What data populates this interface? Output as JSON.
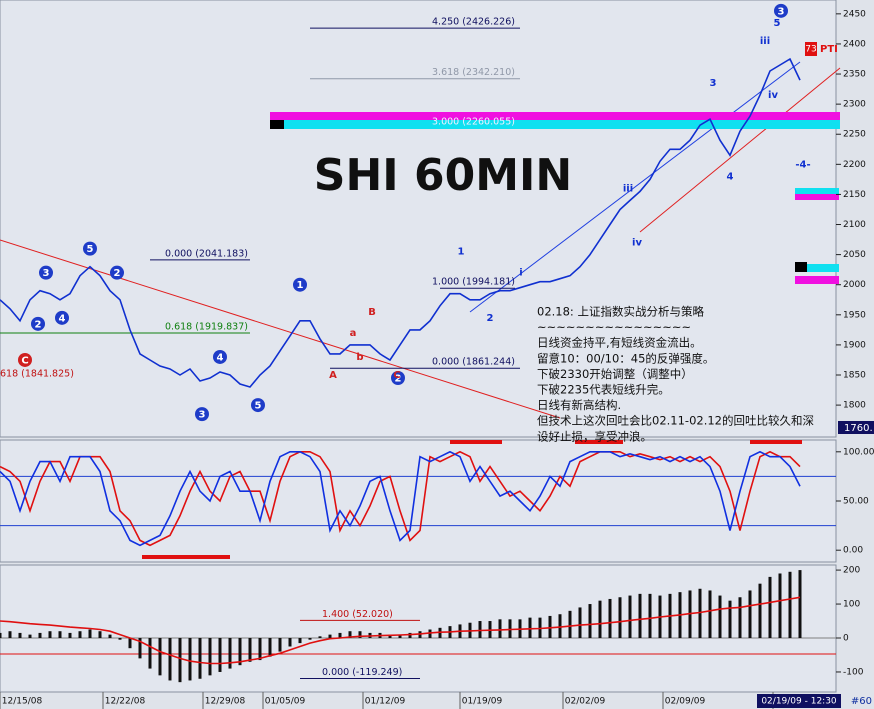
{
  "chart_data": [
    {
      "type": "line",
      "title": "SHI 60MIN",
      "xlim": [
        0,
        83.6
      ],
      "ylim": [
        1747,
        2473
      ],
      "yticks": [
        1800,
        1850,
        1900,
        1950,
        2000,
        2050,
        2100,
        2150,
        2200,
        2250,
        2300,
        2350,
        2400,
        2450
      ],
      "color": "#1030d0",
      "values": [
        1975,
        1960,
        1940,
        1975,
        1990,
        1985,
        1975,
        1985,
        2015,
        2030,
        2015,
        1990,
        1975,
        1925,
        1885,
        1875,
        1865,
        1860,
        1850,
        1860,
        1840,
        1845,
        1855,
        1850,
        1835,
        1830,
        1850,
        1865,
        1890,
        1915,
        1940,
        1940,
        1910,
        1885,
        1885,
        1900,
        1900,
        1900,
        1885,
        1875,
        1900,
        1925,
        1925,
        1940,
        1965,
        1985,
        1985,
        1975,
        1975,
        1985,
        1990,
        1990,
        1995,
        2000,
        2005,
        2005,
        2010,
        2015,
        2030,
        2050,
        2075,
        2100,
        2125,
        2140,
        2155,
        2175,
        2205,
        2225,
        2225,
        2240,
        2265,
        2275,
        2240,
        2215,
        2255,
        2280,
        2315,
        2355,
        2365,
        2375,
        2340
      ],
      "annotations": [
        {
          "text": "4.250 (2426.226)",
          "y": 2426.226,
          "color": "#101060"
        },
        {
          "text": "3.618 (2342.210)",
          "y": 2342.21,
          "color": "#9098a8"
        },
        {
          "text": "3.000 (2260.055)",
          "y": 2260.055,
          "color": "#f0f0ff"
        },
        {
          "text": "0.000 (2041.183)",
          "y": 2041.183,
          "color": "#101060"
        },
        {
          "text": "1.000 (1994.181)",
          "y": 1994.181,
          "color": "#101060"
        },
        {
          "text": "0.618 (1919.837)",
          "y": 1919.837,
          "color": "#108010"
        },
        {
          "text": "0.000 (1861.244)",
          "y": 1861.244,
          "color": "#101060"
        },
        {
          "text": "618 (1841.825)",
          "y": 1841.825,
          "color": "#c01010"
        }
      ],
      "circled_labels": [
        {
          "text": "5",
          "x": 9,
          "y": 2060,
          "color": "#1e3cc8"
        },
        {
          "text": "3",
          "x": 4.6,
          "y": 2020,
          "color": "#1e3cc8"
        },
        {
          "text": "2",
          "x": 11.7,
          "y": 2020,
          "color": "#1e3cc8"
        },
        {
          "text": "4",
          "x": 6.2,
          "y": 1945,
          "color": "#1e3cc8"
        },
        {
          "text": "2",
          "x": 3.8,
          "y": 1935,
          "color": "#1e3cc8"
        },
        {
          "text": "4",
          "x": 22,
          "y": 1880,
          "color": "#1e3cc8"
        },
        {
          "text": "3",
          "x": 20.2,
          "y": 1785,
          "color": "#1e3cc8"
        },
        {
          "text": "5",
          "x": 25.8,
          "y": 1800,
          "color": "#1e3cc8"
        },
        {
          "text": "1",
          "x": 30,
          "y": 2000,
          "color": "#1e3cc8"
        },
        {
          "text": "2",
          "x": 39.8,
          "y": 1845,
          "color": "#1e3cc8"
        },
        {
          "text": "3",
          "x": 78.1,
          "y": 2455,
          "color": "#1e3cc8"
        },
        {
          "text": "C",
          "x": 2.5,
          "y": 1875,
          "color": "#d02020"
        }
      ],
      "wave_labels": [
        {
          "text": "3",
          "x": 71.3,
          "y": 2335,
          "color": "#1030d0"
        },
        {
          "text": "5",
          "x": 77.7,
          "y": 2435,
          "color": "#1030d0"
        },
        {
          "text": "iii",
          "x": 76.5,
          "y": 2405,
          "color": "#1030d0"
        },
        {
          "text": "iv",
          "x": 77.3,
          "y": 2315,
          "color": "#1030d0"
        },
        {
          "text": "4",
          "x": 73,
          "y": 2180,
          "color": "#1030d0"
        },
        {
          "text": "-4-",
          "x": 80.3,
          "y": 2200,
          "color": "#1030d0"
        },
        {
          "text": "A",
          "x": 33.3,
          "y": 1850,
          "color": "#d02020"
        },
        {
          "text": "B",
          "x": 37.2,
          "y": 1955,
          "color": "#d02020"
        },
        {
          "text": "C",
          "x": 39.7,
          "y": 1850,
          "color": "#d02020"
        },
        {
          "text": "a",
          "x": 35.3,
          "y": 1920,
          "color": "#d02020"
        },
        {
          "text": "b",
          "x": 36,
          "y": 1880,
          "color": "#d02020"
        },
        {
          "text": "2",
          "x": 49,
          "y": 1945,
          "color": "#1030d0"
        },
        {
          "text": "1",
          "x": 46.1,
          "y": 2055,
          "color": "#1030d0"
        },
        {
          "text": "i",
          "x": 52.1,
          "y": 2020,
          "color": "#1030d0"
        },
        {
          "text": "iii",
          "x": 62.8,
          "y": 2160,
          "color": "#1030d0"
        },
        {
          "text": "iv",
          "x": 63.7,
          "y": 2070,
          "color": "#1030d0"
        }
      ],
      "notes": [
        "02.18: 上证指数实战分析与策略",
        "~~~~~~~~~~~~~~~~",
        "日线资金持平,有短线资金流出。",
        "留意10：00/10：45的反弹强度。",
        "下破2330开始调整（调整中）",
        "下破2235代表短线升完。",
        "日线有新高结构.",
        "但技术上这次回吐会比02.11-02.12的回吐比较久和深",
        "设好止损，享受冲浪。"
      ],
      "marker": "73",
      "marker_text": "PTI",
      "last_price": "1760."
    },
    {
      "type": "line",
      "xlim": [
        0,
        83.6
      ],
      "ylim": [
        -12,
        112
      ],
      "yticks": [
        {
          "value": 0,
          "label": "0.00"
        },
        {
          "value": 50,
          "label": "50.00"
        },
        {
          "value": 100,
          "label": "100.00"
        }
      ],
      "hlines": [
        {
          "value": 75,
          "color": "#2040d0"
        },
        {
          "value": 25,
          "color": "#2040d0"
        }
      ],
      "lines": [
        {
          "color": "#e01010",
          "values": [
            85,
            80,
            70,
            40,
            70,
            90,
            90,
            70,
            95,
            95,
            95,
            80,
            40,
            30,
            10,
            5,
            10,
            15,
            35,
            60,
            80,
            60,
            50,
            75,
            80,
            60,
            60,
            30,
            70,
            95,
            100,
            100,
            95,
            80,
            20,
            40,
            25,
            45,
            70,
            75,
            40,
            10,
            20,
            95,
            90,
            95,
            100,
            95,
            70,
            85,
            70,
            55,
            60,
            50,
            40,
            55,
            75,
            65,
            90,
            95,
            100,
            100,
            100,
            95,
            98,
            95,
            92,
            95,
            90,
            95,
            90,
            95,
            85,
            60,
            20,
            60,
            95,
            100,
            95,
            95,
            85
          ]
        },
        {
          "color": "#1030e0",
          "values": [
            80,
            70,
            40,
            70,
            90,
            90,
            70,
            95,
            95,
            95,
            80,
            40,
            30,
            10,
            5,
            10,
            15,
            35,
            60,
            80,
            60,
            50,
            75,
            80,
            60,
            60,
            30,
            70,
            95,
            100,
            100,
            95,
            80,
            20,
            40,
            25,
            45,
            70,
            75,
            40,
            10,
            20,
            95,
            90,
            95,
            100,
            95,
            70,
            85,
            70,
            55,
            60,
            50,
            40,
            55,
            75,
            65,
            90,
            95,
            100,
            100,
            100,
            95,
            98,
            95,
            92,
            95,
            90,
            95,
            90,
            95,
            85,
            60,
            20,
            60,
            95,
            100,
            95,
            95,
            85,
            65
          ]
        }
      ]
    },
    {
      "type": "bar",
      "xlim": [
        0,
        83.6
      ],
      "ylim": [
        -159,
        215
      ],
      "yticks": [
        -100,
        0,
        100,
        200
      ],
      "color": "#101010",
      "values": [
        15,
        20,
        15,
        10,
        15,
        20,
        20,
        15,
        20,
        25,
        20,
        10,
        -5,
        -30,
        -60,
        -90,
        -110,
        -125,
        -130,
        -125,
        -120,
        -110,
        -100,
        -90,
        -80,
        -70,
        -65,
        -55,
        -40,
        -25,
        -15,
        -5,
        5,
        10,
        15,
        20,
        20,
        15,
        15,
        10,
        10,
        15,
        20,
        25,
        30,
        35,
        40,
        45,
        50,
        50,
        55,
        55,
        55,
        60,
        60,
        65,
        70,
        80,
        90,
        100,
        110,
        115,
        120,
        125,
        130,
        130,
        125,
        130,
        135,
        140,
        145,
        140,
        125,
        110,
        120,
        140,
        160,
        180,
        190,
        195,
        200
      ],
      "line": {
        "color": "#e01010",
        "values": [
          50,
          48,
          45,
          42,
          40,
          38,
          35,
          32,
          30,
          28,
          25,
          20,
          10,
          0,
          -10,
          -25,
          -40,
          -50,
          -60,
          -68,
          -72,
          -75,
          -75,
          -73,
          -70,
          -65,
          -60,
          -52,
          -45,
          -35,
          -25,
          -15,
          -8,
          -2,
          0,
          3,
          5,
          6,
          7,
          8,
          9,
          10,
          12,
          15,
          17,
          18,
          20,
          21,
          22,
          23,
          24,
          25,
          26,
          27,
          28,
          30,
          32,
          35,
          38,
          40,
          42,
          45,
          48,
          52,
          55,
          58,
          62,
          65,
          68,
          72,
          75,
          80,
          85,
          88,
          90,
          95,
          100,
          105,
          110,
          115,
          120
        ]
      },
      "hlines": [
        {
          "value": 0,
          "color": "#808080"
        },
        {
          "value": -47,
          "color": "#e01010"
        }
      ],
      "annotations": [
        {
          "text": "1.400 (52.020)",
          "y": 52.02,
          "color": "#c01010"
        },
        {
          "text": "0.000 (-119.249)",
          "y": -119.249,
          "color": "#101060"
        }
      ],
      "xticks": [
        {
          "value": 2.2,
          "label": "12/15/08"
        },
        {
          "value": 12.5,
          "label": "12/22/08"
        },
        {
          "value": 22.5,
          "label": "12/29/08"
        },
        {
          "value": 28.5,
          "label": "01/05/09"
        },
        {
          "value": 38.5,
          "label": "01/12/09"
        },
        {
          "value": 48.2,
          "label": "01/19/09"
        },
        {
          "value": 58.5,
          "label": "02/02/09"
        },
        {
          "value": 68.5,
          "label": "02/09/09"
        },
        {
          "value": 79.5,
          "label": "02/19/09 - 12:30"
        }
      ],
      "period": "#60"
    }
  ]
}
